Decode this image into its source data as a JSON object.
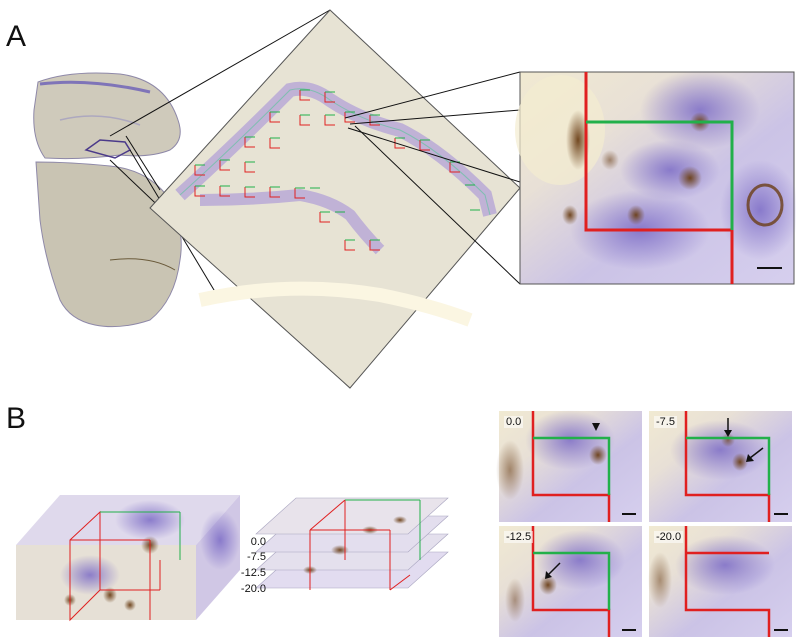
{
  "panels": {
    "a": "A",
    "b": "B"
  },
  "depths": [
    "0.0",
    "-7.5",
    "-12.5",
    "-20.0"
  ],
  "tiles": [
    "0.0",
    "-7.5",
    "-12.5",
    "-20.0"
  ],
  "colors": {
    "red": "#e02020",
    "green": "#22b04a",
    "purple": "#8a79c8",
    "brown": "#8a5a2a",
    "tissue": "#c9c4b4"
  }
}
